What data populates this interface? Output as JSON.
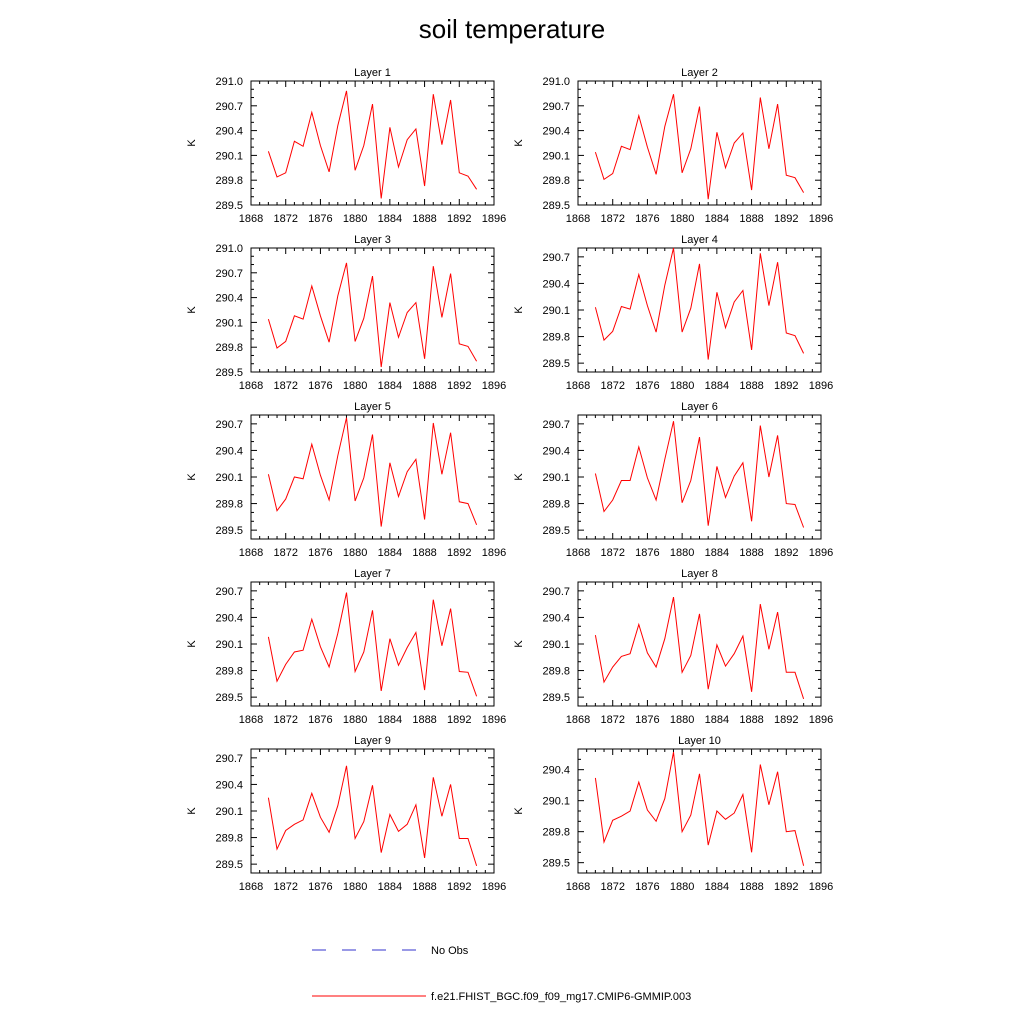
{
  "figure": {
    "title": "soil temperature",
    "legend": [
      {
        "label": "No Obs",
        "color": "#3333cc",
        "style": "dashed"
      },
      {
        "label": "f.e21.FHIST_BGC.f09_f09_mg17.CMIP6-GMMIP.003",
        "color": "#ff0000",
        "style": "solid"
      }
    ]
  },
  "chart_data": [
    {
      "type": "line",
      "title": "Layer 1",
      "xlabel": "",
      "ylabel": "K",
      "xlim": [
        1868,
        1896
      ],
      "xticks": [
        "1868",
        "1872",
        "1876",
        "1880",
        "1884",
        "1888",
        "1892",
        "1896"
      ],
      "ylim": [
        289.5,
        291.0
      ],
      "yticks": [
        "289.5",
        "289.8",
        "290.1",
        "290.4",
        "290.7",
        "291.0"
      ],
      "series": [
        {
          "name": "f.e21.FHIST_BGC.f09_f09_mg17.CMIP6-GMMIP.003",
          "color": "#ff0000",
          "x": [
            1870,
            1871,
            1872,
            1873,
            1874,
            1875,
            1876,
            1877,
            1878,
            1879,
            1880,
            1881,
            1882,
            1883,
            1884,
            1885,
            1886,
            1887,
            1888,
            1889,
            1890,
            1891,
            1892,
            1893,
            1894
          ],
          "values": [
            290.15,
            289.84,
            289.89,
            290.27,
            290.21,
            290.62,
            290.22,
            289.9,
            290.46,
            290.88,
            289.92,
            290.22,
            290.72,
            289.58,
            290.44,
            289.96,
            290.29,
            290.42,
            289.73,
            290.84,
            290.23,
            290.77,
            289.89,
            289.85,
            289.69
          ]
        }
      ]
    },
    {
      "type": "line",
      "title": "Layer 2",
      "xlabel": "",
      "ylabel": "K",
      "xlim": [
        1868,
        1896
      ],
      "xticks": [
        "1868",
        "1872",
        "1876",
        "1880",
        "1884",
        "1888",
        "1892",
        "1896"
      ],
      "ylim": [
        289.5,
        291.0
      ],
      "yticks": [
        "289.5",
        "289.8",
        "290.1",
        "290.4",
        "290.7",
        "291.0"
      ],
      "series": [
        {
          "name": "f.e21.FHIST_BGC.f09_f09_mg17.CMIP6-GMMIP.003",
          "color": "#ff0000",
          "x": [
            1870,
            1871,
            1872,
            1873,
            1874,
            1875,
            1876,
            1877,
            1878,
            1879,
            1880,
            1881,
            1882,
            1883,
            1884,
            1885,
            1886,
            1887,
            1888,
            1889,
            1890,
            1891,
            1892,
            1893,
            1894
          ],
          "values": [
            290.14,
            289.81,
            289.88,
            290.21,
            290.17,
            290.58,
            290.2,
            289.87,
            290.45,
            290.84,
            289.89,
            290.18,
            290.69,
            289.57,
            290.38,
            289.95,
            290.25,
            290.37,
            289.68,
            290.8,
            290.18,
            290.72,
            289.86,
            289.83,
            289.65
          ]
        }
      ]
    },
    {
      "type": "line",
      "title": "Layer 3",
      "xlabel": "",
      "ylabel": "K",
      "xlim": [
        1868,
        1896
      ],
      "xticks": [
        "1868",
        "1872",
        "1876",
        "1880",
        "1884",
        "1888",
        "1892",
        "1896"
      ],
      "ylim": [
        289.5,
        291.0
      ],
      "yticks": [
        "289.5",
        "289.8",
        "290.1",
        "290.4",
        "290.7",
        "291.0"
      ],
      "series": [
        {
          "name": "f.e21.FHIST_BGC.f09_f09_mg17.CMIP6-GMMIP.003",
          "color": "#ff0000",
          "x": [
            1870,
            1871,
            1872,
            1873,
            1874,
            1875,
            1876,
            1877,
            1878,
            1879,
            1880,
            1881,
            1882,
            1883,
            1884,
            1885,
            1886,
            1887,
            1888,
            1889,
            1890,
            1891,
            1892,
            1893,
            1894
          ],
          "values": [
            290.14,
            289.79,
            289.87,
            290.18,
            290.14,
            290.54,
            290.18,
            289.86,
            290.42,
            290.82,
            289.87,
            290.15,
            290.66,
            289.56,
            290.34,
            289.92,
            290.22,
            290.34,
            289.66,
            290.78,
            290.16,
            290.69,
            289.84,
            289.81,
            289.63
          ]
        }
      ]
    },
    {
      "type": "line",
      "title": "Layer 4",
      "xlabel": "",
      "ylabel": "K",
      "xlim": [
        1868,
        1896
      ],
      "xticks": [
        "1868",
        "1872",
        "1876",
        "1880",
        "1884",
        "1888",
        "1892",
        "1896"
      ],
      "ylim": [
        289.4,
        290.8
      ],
      "yticks": [
        "289.5",
        "289.8",
        "290.1",
        "290.4",
        "290.7"
      ],
      "series": [
        {
          "name": "f.e21.FHIST_BGC.f09_f09_mg17.CMIP6-GMMIP.003",
          "color": "#ff0000",
          "x": [
            1870,
            1871,
            1872,
            1873,
            1874,
            1875,
            1876,
            1877,
            1878,
            1879,
            1880,
            1881,
            1882,
            1883,
            1884,
            1885,
            1886,
            1887,
            1888,
            1889,
            1890,
            1891,
            1892,
            1893,
            1894
          ],
          "values": [
            290.13,
            289.76,
            289.86,
            290.14,
            290.11,
            290.5,
            290.15,
            289.85,
            290.38,
            290.8,
            289.85,
            290.12,
            290.62,
            289.54,
            290.3,
            289.9,
            290.19,
            290.32,
            289.65,
            290.74,
            290.15,
            290.64,
            289.84,
            289.81,
            289.61
          ]
        }
      ]
    },
    {
      "type": "line",
      "title": "Layer 5",
      "xlabel": "",
      "ylabel": "K",
      "xlim": [
        1868,
        1896
      ],
      "xticks": [
        "1868",
        "1872",
        "1876",
        "1880",
        "1884",
        "1888",
        "1892",
        "1896"
      ],
      "ylim": [
        289.4,
        290.8
      ],
      "yticks": [
        "289.5",
        "289.8",
        "290.1",
        "290.4",
        "290.7"
      ],
      "series": [
        {
          "name": "f.e21.FHIST_BGC.f09_f09_mg17.CMIP6-GMMIP.003",
          "color": "#ff0000",
          "x": [
            1870,
            1871,
            1872,
            1873,
            1874,
            1875,
            1876,
            1877,
            1878,
            1879,
            1880,
            1881,
            1882,
            1883,
            1884,
            1885,
            1886,
            1887,
            1888,
            1889,
            1890,
            1891,
            1892,
            1893,
            1894
          ],
          "values": [
            290.13,
            289.72,
            289.85,
            290.1,
            290.08,
            290.47,
            290.12,
            289.84,
            290.34,
            290.77,
            289.83,
            290.09,
            290.58,
            289.54,
            290.26,
            289.88,
            290.16,
            290.3,
            289.62,
            290.71,
            290.13,
            290.6,
            289.82,
            289.8,
            289.56
          ]
        }
      ]
    },
    {
      "type": "line",
      "title": "Layer 6",
      "xlabel": "",
      "ylabel": "K",
      "xlim": [
        1868,
        1896
      ],
      "xticks": [
        "1868",
        "1872",
        "1876",
        "1880",
        "1884",
        "1888",
        "1892",
        "1896"
      ],
      "ylim": [
        289.4,
        290.8
      ],
      "yticks": [
        "289.5",
        "289.8",
        "290.1",
        "290.4",
        "290.7"
      ],
      "series": [
        {
          "name": "f.e21.FHIST_BGC.f09_f09_mg17.CMIP6-GMMIP.003",
          "color": "#ff0000",
          "x": [
            1870,
            1871,
            1872,
            1873,
            1874,
            1875,
            1876,
            1877,
            1878,
            1879,
            1880,
            1881,
            1882,
            1883,
            1884,
            1885,
            1886,
            1887,
            1888,
            1889,
            1890,
            1891,
            1892,
            1893,
            1894
          ],
          "values": [
            290.14,
            289.71,
            289.84,
            290.06,
            290.06,
            290.44,
            290.09,
            289.84,
            290.3,
            290.73,
            289.81,
            290.06,
            290.55,
            289.55,
            290.22,
            289.87,
            290.11,
            290.26,
            289.6,
            290.68,
            290.1,
            290.57,
            289.8,
            289.79,
            289.53
          ]
        }
      ]
    },
    {
      "type": "line",
      "title": "Layer 7",
      "xlabel": "",
      "ylabel": "K",
      "xlim": [
        1868,
        1896
      ],
      "xticks": [
        "1868",
        "1872",
        "1876",
        "1880",
        "1884",
        "1888",
        "1892",
        "1896"
      ],
      "ylim": [
        289.4,
        290.8
      ],
      "yticks": [
        "289.5",
        "289.8",
        "290.1",
        "290.4",
        "290.7"
      ],
      "series": [
        {
          "name": "f.e21.FHIST_BGC.f09_f09_mg17.CMIP6-GMMIP.003",
          "color": "#ff0000",
          "x": [
            1870,
            1871,
            1872,
            1873,
            1874,
            1875,
            1876,
            1877,
            1878,
            1879,
            1880,
            1881,
            1882,
            1883,
            1884,
            1885,
            1886,
            1887,
            1888,
            1889,
            1890,
            1891,
            1892,
            1893,
            1894
          ],
          "values": [
            290.18,
            289.68,
            289.87,
            290.01,
            290.03,
            290.38,
            290.07,
            289.84,
            290.22,
            290.68,
            289.79,
            290.01,
            290.48,
            289.57,
            290.16,
            289.86,
            290.06,
            290.23,
            289.58,
            290.6,
            290.08,
            290.5,
            289.79,
            289.78,
            289.51
          ]
        }
      ]
    },
    {
      "type": "line",
      "title": "Layer 8",
      "xlabel": "",
      "ylabel": "K",
      "xlim": [
        1868,
        1896
      ],
      "xticks": [
        "1868",
        "1872",
        "1876",
        "1880",
        "1884",
        "1888",
        "1892",
        "1896"
      ],
      "ylim": [
        289.4,
        290.8
      ],
      "yticks": [
        "289.5",
        "289.8",
        "290.1",
        "290.4",
        "290.7"
      ],
      "series": [
        {
          "name": "f.e21.FHIST_BGC.f09_f09_mg17.CMIP6-GMMIP.003",
          "color": "#ff0000",
          "x": [
            1870,
            1871,
            1872,
            1873,
            1874,
            1875,
            1876,
            1877,
            1878,
            1879,
            1880,
            1881,
            1882,
            1883,
            1884,
            1885,
            1886,
            1887,
            1888,
            1889,
            1890,
            1891,
            1892,
            1893,
            1894
          ],
          "values": [
            290.2,
            289.67,
            289.84,
            289.96,
            289.99,
            290.32,
            290.0,
            289.84,
            290.16,
            290.63,
            289.78,
            289.97,
            290.44,
            289.59,
            290.09,
            289.85,
            289.99,
            290.19,
            289.56,
            290.55,
            290.04,
            290.46,
            289.78,
            289.78,
            289.48
          ]
        }
      ]
    },
    {
      "type": "line",
      "title": "Layer 9",
      "xlabel": "",
      "ylabel": "K",
      "xlim": [
        1868,
        1896
      ],
      "xticks": [
        "1868",
        "1872",
        "1876",
        "1880",
        "1884",
        "1888",
        "1892",
        "1896"
      ],
      "ylim": [
        289.4,
        290.8
      ],
      "yticks": [
        "289.5",
        "289.8",
        "290.1",
        "290.4",
        "290.7"
      ],
      "series": [
        {
          "name": "f.e21.FHIST_BGC.f09_f09_mg17.CMIP6-GMMIP.003",
          "color": "#ff0000",
          "x": [
            1870,
            1871,
            1872,
            1873,
            1874,
            1875,
            1876,
            1877,
            1878,
            1879,
            1880,
            1881,
            1882,
            1883,
            1884,
            1885,
            1886,
            1887,
            1888,
            1889,
            1890,
            1891,
            1892,
            1893,
            1894
          ],
          "values": [
            290.25,
            289.67,
            289.88,
            289.95,
            290.0,
            290.3,
            290.03,
            289.86,
            290.16,
            290.61,
            289.79,
            289.98,
            290.39,
            289.63,
            290.06,
            289.87,
            289.95,
            290.17,
            289.57,
            290.48,
            290.04,
            290.4,
            289.79,
            289.79,
            289.48
          ]
        }
      ]
    },
    {
      "type": "line",
      "title": "Layer 10",
      "xlabel": "",
      "ylabel": "K",
      "xlim": [
        1868,
        1896
      ],
      "xticks": [
        "1868",
        "1872",
        "1876",
        "1880",
        "1884",
        "1888",
        "1892",
        "1896"
      ],
      "ylim": [
        289.4,
        290.6
      ],
      "yticks": [
        "289.5",
        "289.8",
        "290.1",
        "290.4"
      ],
      "series": [
        {
          "name": "f.e21.FHIST_BGC.f09_f09_mg17.CMIP6-GMMIP.003",
          "color": "#ff0000",
          "x": [
            1870,
            1871,
            1872,
            1873,
            1874,
            1875,
            1876,
            1877,
            1878,
            1879,
            1880,
            1881,
            1882,
            1883,
            1884,
            1885,
            1886,
            1887,
            1888,
            1889,
            1890,
            1891,
            1892,
            1893,
            1894
          ],
          "values": [
            290.32,
            289.7,
            289.91,
            289.95,
            290.0,
            290.28,
            290.01,
            289.9,
            290.12,
            290.57,
            289.8,
            289.96,
            290.36,
            289.67,
            290.0,
            289.92,
            289.98,
            290.16,
            289.6,
            290.45,
            290.06,
            290.38,
            289.8,
            289.81,
            289.47
          ]
        }
      ]
    }
  ]
}
